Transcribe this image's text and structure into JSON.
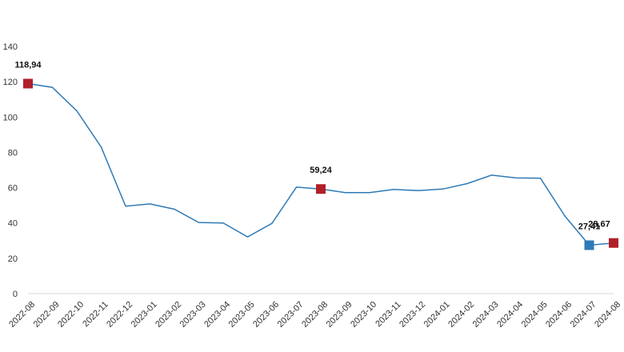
{
  "chart_data": {
    "type": "line",
    "title": "",
    "xlabel": "",
    "ylabel": "",
    "ylim": [
      0,
      140
    ],
    "yticks": [
      0,
      20,
      40,
      60,
      80,
      100,
      120,
      140
    ],
    "grid": false,
    "categories": [
      "2022-08",
      "2022-09",
      "2022-10",
      "2022-11",
      "2022-12",
      "2023-01",
      "2023-02",
      "2023-03",
      "2023-04",
      "2023-05",
      "2023-06",
      "2023-07",
      "2023-08",
      "2023-09",
      "2023-10",
      "2023-11",
      "2023-12",
      "2024-01",
      "2024-02",
      "2024-03",
      "2024-04",
      "2024-05",
      "2024-06",
      "2024-07",
      "2024-08"
    ],
    "series": [
      {
        "color": "#2e7ab6",
        "values": [
          118.94,
          116.8,
          103.5,
          83.0,
          49.5,
          50.8,
          47.8,
          40.3,
          40.0,
          32.1,
          39.8,
          60.3,
          59.24,
          57.2,
          57.2,
          59.0,
          58.3,
          59.2,
          62.3,
          67.1,
          65.5,
          65.4,
          44.0,
          27.41,
          28.67
        ]
      }
    ],
    "markers": [
      {
        "index": 0,
        "label": "118,94",
        "color": "#b0202a"
      },
      {
        "index": 12,
        "label": "59,24",
        "color": "#b0202a"
      },
      {
        "index": 23,
        "label": "27,41",
        "color": "#2e7ab6"
      },
      {
        "index": 24,
        "label": "28,67",
        "color": "#b0202a"
      }
    ]
  }
}
